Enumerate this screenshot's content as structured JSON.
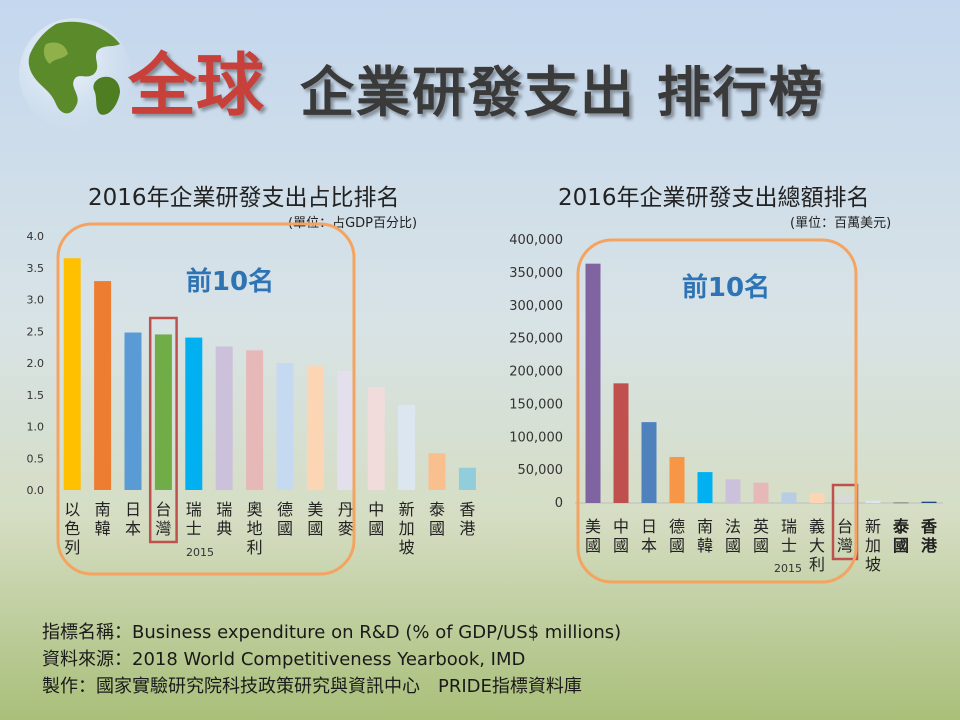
{
  "title": {
    "part1": "全球",
    "part2": "企業研發支出 排行榜"
  },
  "chart_data": [
    {
      "type": "bar",
      "title": "2016年企業研發支出占比排名",
      "unit": "(單位：占GDP百分比)",
      "annotation": "前10名",
      "x_subtitle": "2015",
      "categories": [
        "以色列",
        "南韓",
        "日本",
        "台灣",
        "瑞士",
        "瑞典",
        "奧地利",
        "德國",
        "美國",
        "丹麥",
        "中國",
        "新加坡",
        "泰國",
        "香港"
      ],
      "values": [
        3.65,
        3.29,
        2.48,
        2.45,
        2.4,
        2.26,
        2.2,
        2.0,
        1.95,
        1.88,
        1.62,
        1.34,
        0.58,
        0.35
      ],
      "colors": [
        "#ffc000",
        "#ed7d31",
        "#5b9bd5",
        "#70ad47",
        "#00b0f0",
        "#ccc1da",
        "#e6b9b8",
        "#c5d9f1",
        "#fcd5b4",
        "#e4dfec",
        "#f2dcdb",
        "#dce6f1",
        "#fabf8f",
        "#92cddc"
      ],
      "highlight": "台灣",
      "ylim": [
        0,
        4.0
      ],
      "ticks": [
        "0.0",
        "0.5",
        "1.0",
        "1.5",
        "2.0",
        "2.5",
        "3.0",
        "3.5",
        "4.0"
      ],
      "tick_values": [
        0,
        0.5,
        1.0,
        1.5,
        2.0,
        2.5,
        3.0,
        3.5,
        4.0
      ]
    },
    {
      "type": "bar",
      "title": "2016年企業研發支出總額排名",
      "unit": "(單位：百萬美元)",
      "annotation": "前10名",
      "x_subtitle": "2015",
      "categories": [
        "美國",
        "中國",
        "日本",
        "德國",
        "南韓",
        "法國",
        "英國",
        "瑞士",
        "義大利",
        "台灣",
        "新加坡",
        "泰國",
        "香港"
      ],
      "values": [
        364000,
        182000,
        123000,
        70000,
        47000,
        36000,
        31000,
        16000,
        15000,
        12500,
        3500,
        1000,
        2000
      ],
      "colors": [
        "#8064a2",
        "#c0504d",
        "#4f81bd",
        "#f79646",
        "#00b0f0",
        "#ccc1da",
        "#e6b9b8",
        "#b8cce4",
        "#fcd5b4",
        "#d9d9d9",
        "#dce6f1",
        "#808080",
        "#1f497d"
      ],
      "highlight": "台灣",
      "bold_categories": [
        "泰國",
        "香港"
      ],
      "ylim": [
        0,
        400000
      ],
      "ticks": [
        "0",
        "50,000",
        "100,000",
        "150,000",
        "200,000",
        "250,000",
        "300,000",
        "350,000",
        "400,000"
      ],
      "tick_values": [
        0,
        50000,
        100000,
        150000,
        200000,
        250000,
        300000,
        350000,
        400000
      ]
    }
  ],
  "footer": {
    "line1": "指標名稱：Business expenditure on R&D  (% of GDP/US$ millions)",
    "line2": "資料來源：2018 World Competitiveness Yearbook, IMD",
    "line3": "製作：國家實驗研究院科技政策研究與資訊中心　PRIDE指標資料庫"
  },
  "colors": {
    "accent_orange": "#f4a460",
    "highlight_red": "#c0504d"
  }
}
